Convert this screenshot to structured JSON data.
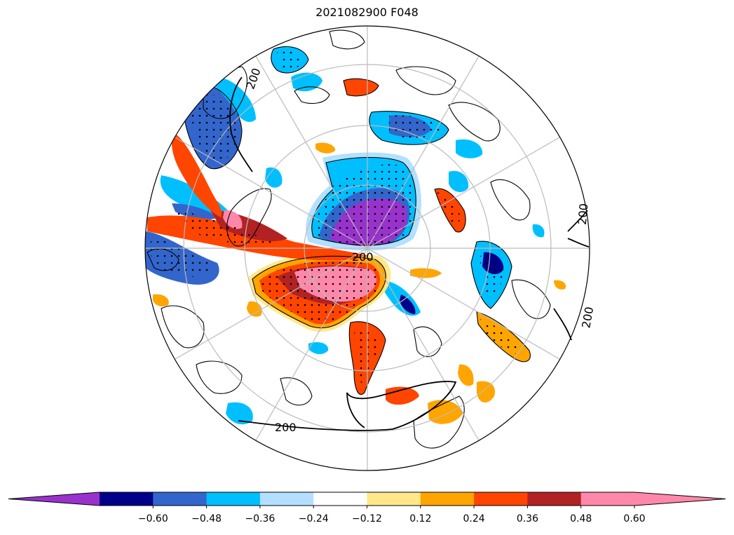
{
  "title": "2021082900 F048",
  "colorbar": {
    "under_color": "#9932cc",
    "over_color": "#ff88aa",
    "bins": [
      {
        "color": "#00008b"
      },
      {
        "color": "#3366cc"
      },
      {
        "color": "#00bfff"
      },
      {
        "color": "#b3e0ff"
      },
      {
        "color": "#ffffff"
      },
      {
        "color": "#ffe88a"
      },
      {
        "color": "#ffa500"
      },
      {
        "color": "#ff4500"
      },
      {
        "color": "#b22222"
      },
      {
        "color": "#ff88aa"
      }
    ],
    "ticks": [
      "−0.60",
      "−0.48",
      "−0.36",
      "−0.24",
      "−0.12",
      "0.12",
      "0.24",
      "0.36",
      "0.48",
      "0.60"
    ]
  },
  "contour_labels": [
    "200",
    "200",
    "200",
    "200",
    "200"
  ]
}
